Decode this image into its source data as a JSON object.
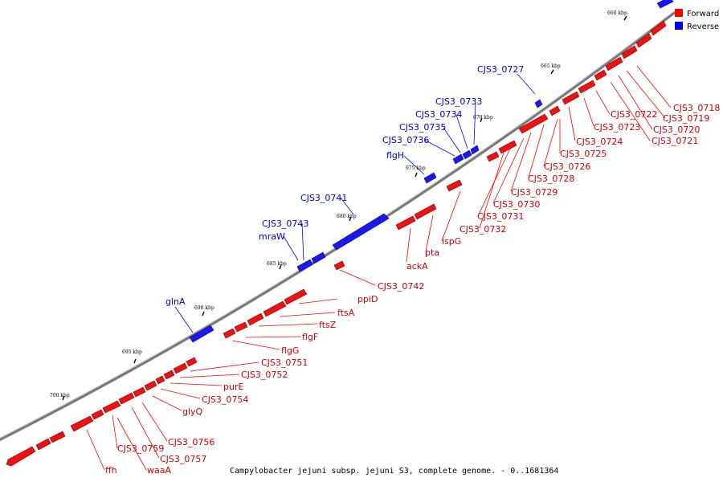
{
  "caption": "Campylobacter jejuni subsp. jejuni S3, complete genome. - 0..1681364",
  "legend": {
    "forward_label": "Forward",
    "reverse_label": "Reverse",
    "forward_color": "#ff0000",
    "reverse_color": "#0000ff"
  },
  "colors": {
    "forward_label": "#cc0000",
    "reverse_label": "#0000cc",
    "backbone": "#808080"
  },
  "ticks": [
    "660 kbp",
    "665 kbp",
    "670 kbp",
    "675 kbp",
    "680 kbp",
    "685 kbp",
    "690 kbp",
    "695 kbp",
    "700 kbp"
  ],
  "reverse_genes": [
    "CJS3_0727",
    "CJS3_0733",
    "CJS3_0734",
    "CJS3_0735",
    "CJS3_0736",
    "flgH",
    "CJS3_0741",
    "CJS3_0743",
    "mraW",
    "glnA"
  ],
  "forward_genes": [
    "CJS3_0718",
    "CJS3_0719",
    "CJS3_0720",
    "CJS3_0721",
    "CJS3_0722",
    "CJS3_0723",
    "CJS3_0724",
    "CJS3_0725",
    "CJS3_0726",
    "CJS3_0728",
    "CJS3_0729",
    "CJS3_0730",
    "CJS3_0731",
    "CJS3_0732",
    "ispG",
    "pta",
    "ackA",
    "CJS3_0742",
    "ppiD",
    "ftsA",
    "ftsZ",
    "flgF",
    "flgG",
    "CJS3_0751",
    "CJS3_0752",
    "purE",
    "CJS3_0754",
    "glyQ",
    "CJS3_0756",
    "CJS3_0757",
    "CJS3_0759",
    "waaA",
    "ffh"
  ]
}
